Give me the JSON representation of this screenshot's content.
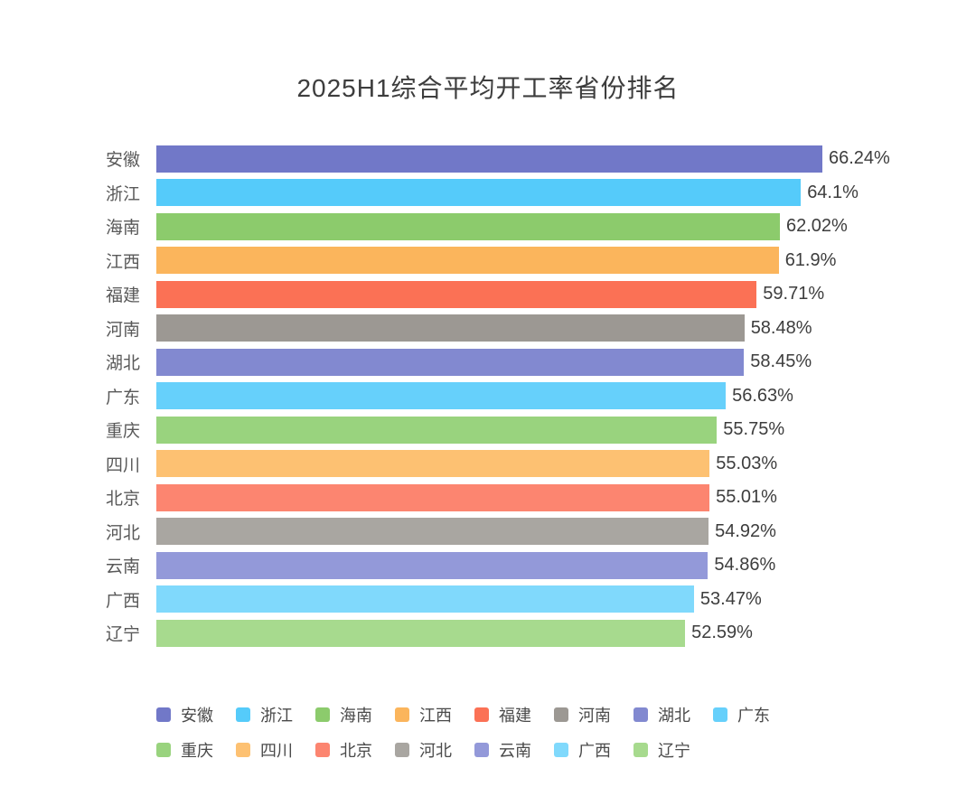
{
  "title": "2025H1综合平均开工率省份排名",
  "chart_data": {
    "type": "bar",
    "orientation": "horizontal",
    "title": "2025H1综合平均开工率省份排名",
    "categories": [
      "安徽",
      "浙江",
      "海南",
      "江西",
      "福建",
      "河南",
      "湖北",
      "广东",
      "重庆",
      "四川",
      "北京",
      "河北",
      "云南",
      "广西",
      "辽宁"
    ],
    "values": [
      66.24,
      64.1,
      62.02,
      61.9,
      59.71,
      58.48,
      58.45,
      56.63,
      55.75,
      55.03,
      55.01,
      54.92,
      54.86,
      53.47,
      52.59
    ],
    "value_labels": [
      "66.24%",
      "64.1%",
      "62.02%",
      "61.9%",
      "59.71%",
      "58.48%",
      "58.45%",
      "56.63%",
      "55.75%",
      "55.03%",
      "55.01%",
      "54.92%",
      "54.86%",
      "53.47%",
      "52.59%"
    ],
    "colors": [
      "#7178C8",
      "#55CBFA",
      "#8CCB6C",
      "#FBB55C",
      "#FB7155",
      "#9C9893",
      "#8289D0",
      "#66D0FB",
      "#99D37E",
      "#FDC172",
      "#FC8570",
      "#A9A6A1",
      "#9399D9",
      "#80D9FC",
      "#A7DA8E"
    ],
    "value_suffix": "%",
    "grid": false,
    "axis_lines": false,
    "legend_position": "bottom",
    "legend_rows": [
      [
        "安徽",
        "浙江",
        "海南",
        "江西",
        "福建",
        "河南",
        "湖北",
        "广东"
      ],
      [
        "重庆",
        "四川",
        "北京",
        "河北",
        "云南",
        "广西",
        "辽宁"
      ]
    ]
  }
}
